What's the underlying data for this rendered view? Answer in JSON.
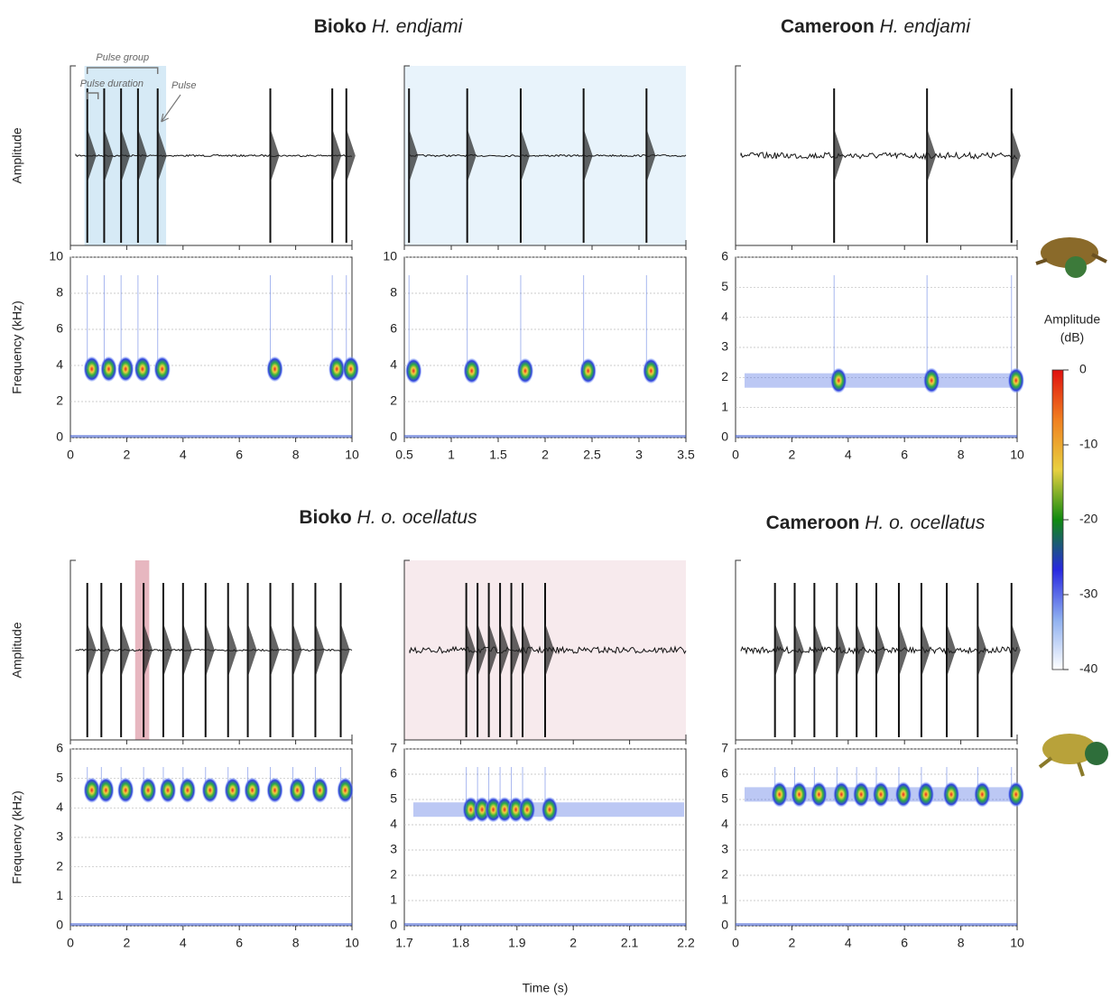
{
  "figure": {
    "titles": [
      {
        "bold": "Bioko",
        "italic": "H. endjami"
      },
      {
        "bold": "Cameroon",
        "italic": "H. endjami"
      },
      {
        "bold": "Bioko",
        "italic": "H. o. ocellatus"
      },
      {
        "bold": "Cameroon",
        "italic": "H. o. ocellatus"
      }
    ],
    "annotations": {
      "pulse_group": "Pulse group",
      "pulse_duration": "Pulse duration",
      "pulse": "Pulse"
    },
    "amplitude_label": "Amplitude",
    "frequency_label": "Frequency (kHz)",
    "time_label": "Time (s)",
    "colorbar": {
      "title_lines": [
        "Amplitude",
        "(dB)"
      ],
      "ylim": [
        -40,
        0
      ],
      "yticks": [
        0,
        -10,
        -20,
        -30,
        -40
      ],
      "colors": [
        "#ffffff",
        "#8fb0f0",
        "#2828e0",
        "#108a10",
        "#e8d040",
        "#f08020",
        "#e01010"
      ]
    }
  },
  "chart_data": [
    {
      "type": "spectrogram",
      "xlim": [
        0,
        10
      ],
      "xticks": [
        0,
        2,
        4,
        6,
        8,
        10
      ],
      "ylim": [
        0,
        10
      ],
      "yticks": [
        0,
        2,
        4,
        6,
        8,
        10
      ],
      "pulse_times": [
        0.6,
        1.2,
        1.8,
        2.4,
        3.1,
        7.1,
        9.3,
        9.8
      ],
      "dominant_khz": 3.8,
      "highlight": [
        0.5,
        3.4
      ],
      "highlight_color": "#cfe6f5"
    },
    {
      "type": "spectrogram",
      "xlim": [
        0.5,
        3.5
      ],
      "xticks": [
        0.5,
        1,
        1.5,
        2,
        2.5,
        3,
        3.5
      ],
      "ylim": [
        0,
        10
      ],
      "yticks": [
        0,
        2,
        4,
        6,
        8,
        10
      ],
      "pulse_times": [
        0.55,
        1.17,
        1.74,
        2.41,
        3.08
      ],
      "dominant_khz": 3.7,
      "highlight": [
        0.5,
        3.5
      ],
      "highlight_color": "#e4f1fa"
    },
    {
      "type": "spectrogram",
      "xlim": [
        0,
        10
      ],
      "xticks": [
        0,
        2,
        4,
        6,
        8,
        10
      ],
      "ylim": [
        0,
        6
      ],
      "yticks": [
        0,
        1,
        2,
        3,
        4,
        5,
        6
      ],
      "pulse_times": [
        3.5,
        6.8,
        9.8
      ],
      "dominant_khz": 1.9,
      "continuous": true
    },
    {
      "type": "spectrogram",
      "xlim": [
        0,
        10
      ],
      "xticks": [
        0,
        2,
        4,
        6,
        8,
        10
      ],
      "ylim": [
        0,
        6
      ],
      "yticks": [
        0,
        1,
        2,
        3,
        4,
        5,
        6
      ],
      "pulse_times": [
        0.6,
        1.1,
        1.8,
        2.6,
        3.3,
        4.0,
        4.8,
        5.6,
        6.3,
        7.1,
        7.9,
        8.7,
        9.6
      ],
      "dominant_khz": 4.6,
      "highlight": [
        2.3,
        2.8
      ],
      "highlight_color": "#e3aab5"
    },
    {
      "type": "spectrogram",
      "xlim": [
        1.7,
        2.2
      ],
      "xticks": [
        1.7,
        1.8,
        1.9,
        2,
        2.1,
        2.2
      ],
      "ylim": [
        0,
        7
      ],
      "yticks": [
        0,
        1,
        2,
        3,
        4,
        5,
        6,
        7
      ],
      "pulse_times": [
        1.81,
        1.83,
        1.85,
        1.87,
        1.89,
        1.91,
        1.95
      ],
      "dominant_khz": 4.6,
      "highlight": [
        1.7,
        2.2
      ],
      "highlight_color": "#f6e6ea",
      "continuous": true
    },
    {
      "type": "spectrogram",
      "xlim": [
        0,
        10
      ],
      "xticks": [
        0,
        2,
        4,
        6,
        8,
        10
      ],
      "ylim": [
        0,
        7
      ],
      "yticks": [
        0,
        1,
        2,
        3,
        4,
        5,
        6,
        7
      ],
      "pulse_times": [
        1.4,
        2.1,
        2.8,
        3.6,
        4.3,
        5.0,
        5.8,
        6.6,
        7.5,
        8.6,
        9.8
      ],
      "dominant_khz": 5.2,
      "continuous": true
    }
  ]
}
